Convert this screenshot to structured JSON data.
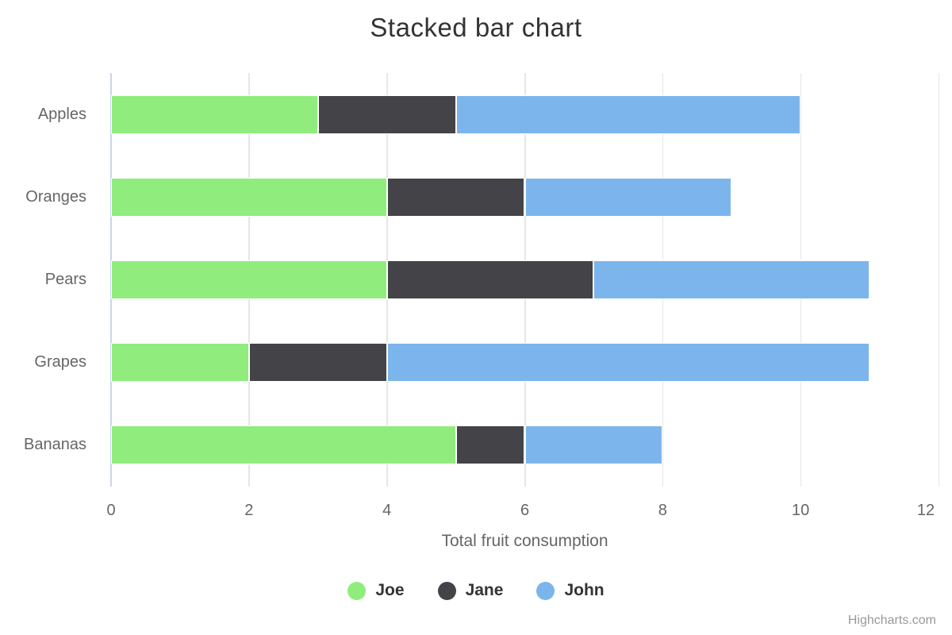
{
  "title": "Stacked bar chart",
  "chart_data": {
    "type": "bar",
    "stacked": true,
    "inverted": true,
    "categories": [
      "Apples",
      "Oranges",
      "Pears",
      "Grapes",
      "Bananas"
    ],
    "series": [
      {
        "name": "Joe",
        "color": "#90ed7d",
        "values": [
          3,
          4,
          4,
          2,
          5
        ]
      },
      {
        "name": "Jane",
        "color": "#434348",
        "values": [
          2,
          2,
          3,
          2,
          1
        ]
      },
      {
        "name": "John",
        "color": "#7cb5ec",
        "values": [
          5,
          3,
          4,
          7,
          2
        ]
      }
    ],
    "stack_totals": [
      10,
      9,
      11,
      11,
      8
    ],
    "xlabel": "Total fruit consumption",
    "xlim": [
      0,
      12
    ],
    "xticks": [
      0,
      2,
      4,
      6,
      8,
      10,
      12
    ],
    "grid": "vertical-only",
    "legend_position": "bottom"
  },
  "credits": {
    "label": "Highcharts.com"
  },
  "colors": {
    "title_text": "#333333",
    "axis_label_text": "#666666",
    "axis_title_text": "#666666",
    "legend_text": "#333333",
    "axis_line": "#ccd6eb",
    "gridline": "#e6e6e6",
    "bar_border": "#ffffff",
    "background": "#ffffff",
    "credits_text": "#999999"
  }
}
